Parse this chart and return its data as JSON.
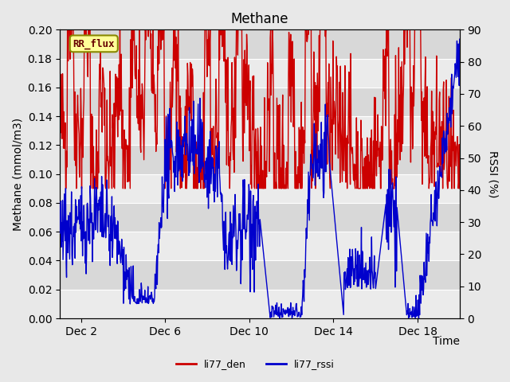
{
  "title": "Methane",
  "xlabel": "Time",
  "ylabel_left": "Methane (mmol/m3)",
  "ylabel_right": "RSSI (%)",
  "ylim_left": [
    0.0,
    0.2
  ],
  "ylim_right": [
    0,
    90
  ],
  "yticks_left": [
    0.0,
    0.02,
    0.04,
    0.06,
    0.08,
    0.1,
    0.12,
    0.14,
    0.16,
    0.18,
    0.2
  ],
  "yticks_right": [
    0,
    10,
    20,
    30,
    40,
    50,
    60,
    70,
    80,
    90
  ],
  "color_red": "#cc0000",
  "color_blue": "#0000cc",
  "bg_color": "#e8e8e8",
  "plot_bg": "#d8d8d8",
  "stripe_color": "#c8c8c8",
  "annotation_box_color": "#ffff99",
  "annotation_box_edge": "#888800",
  "annotation_text": "RR_flux",
  "annotation_text_color": "#660000",
  "legend_labels": [
    "li77_den",
    "li77_rssi"
  ],
  "xtick_labels": [
    "Dec 2",
    "Dec 6",
    "Dec 10",
    "Dec 14",
    "Dec 18"
  ],
  "xtick_positions": [
    2,
    6,
    10,
    14,
    18
  ],
  "xmin": 1,
  "xmax": 20,
  "seed": 42,
  "n_points_red": 900,
  "n_points_blue": 900
}
